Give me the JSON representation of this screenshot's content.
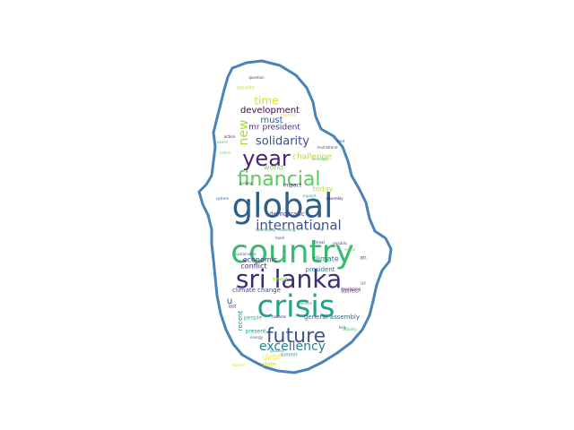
{
  "word_cloud": {
    "outline_color": "#4a83b8",
    "background_color": "#ffffff",
    "words": [
      {
        "text": "country",
        "color": "#3cba71"
      },
      {
        "text": "global",
        "color": "#2e5f8a"
      },
      {
        "text": "crisis",
        "color": "#20a386"
      },
      {
        "text": "sri lanka",
        "color": "#3b2d75"
      },
      {
        "text": "year",
        "color": "#482475"
      },
      {
        "text": "financial",
        "color": "#5ec962"
      },
      {
        "text": "future",
        "color": "#39568c"
      },
      {
        "text": "international",
        "color": "#3a548c"
      },
      {
        "text": "solidarity",
        "color": "#3d4e8a"
      },
      {
        "text": "excellency",
        "color": "#26828e"
      },
      {
        "text": "development",
        "color": "#440154"
      },
      {
        "text": "new",
        "color": "#a0da39"
      },
      {
        "text": "time",
        "color": "#d8e219"
      },
      {
        "text": "must",
        "color": "#33638d"
      },
      {
        "text": "mr president",
        "color": "#472d7b"
      },
      {
        "text": "challenge",
        "color": "#b5de2b"
      },
      {
        "text": "world",
        "color": "#7ad151"
      },
      {
        "text": "today",
        "color": "#bddf26"
      },
      {
        "text": "impact",
        "color": "#453781"
      },
      {
        "text": "democratic",
        "color": "#404688"
      },
      {
        "text": "economic",
        "color": "#472a7a"
      },
      {
        "text": "climate",
        "color": "#2a788e"
      },
      {
        "text": "conflict",
        "color": "#482173"
      },
      {
        "text": "president",
        "color": "#2c728e"
      },
      {
        "text": "need",
        "color": "#95d840"
      },
      {
        "text": "climate change",
        "color": "#3e4a89"
      },
      {
        "text": "general assembly",
        "color": "#31688e"
      },
      {
        "text": "u",
        "color": "#3b528b"
      },
      {
        "text": "people",
        "color": "#35b779"
      },
      {
        "text": "recent",
        "color": "#21918c"
      },
      {
        "text": "present",
        "color": "#1f9e89"
      },
      {
        "text": "debt",
        "color": "#fde725"
      },
      {
        "text": "last",
        "color": "#482878"
      },
      {
        "text": "state",
        "color": "#cae11f"
      },
      {
        "text": "address",
        "color": "#46327e"
      },
      {
        "text": "summit",
        "color": "#228c8d"
      },
      {
        "text": "security",
        "color": "#addc30"
      },
      {
        "text": "multilateral",
        "color": "#365c8d"
      },
      {
        "text": "republic",
        "color": "#414487"
      },
      {
        "text": "community",
        "color": "#287d8e"
      },
      {
        "text": "including",
        "color": "#1fa187"
      },
      {
        "text": "sustainable",
        "color": "#2b758e"
      },
      {
        "text": "economy",
        "color": "#4ac16d"
      },
      {
        "text": "assembly",
        "color": "#471063"
      },
      {
        "text": "spilling",
        "color": "#3f4788"
      },
      {
        "text": "system",
        "color": "#375b8d"
      },
      {
        "text": "developing",
        "color": "#46085c"
      },
      {
        "text": "question",
        "color": "#443983"
      },
      {
        "text": "towards",
        "color": "#481f70"
      },
      {
        "text": "energy",
        "color": "#2d718e"
      },
      {
        "text": "session",
        "color": "#29af7f"
      },
      {
        "text": "lag",
        "color": "#3c4f8a"
      },
      {
        "text": "food",
        "color": "#34618d"
      },
      {
        "text": "threat",
        "color": "#433e85"
      },
      {
        "text": "nation",
        "color": "#8bd646"
      },
      {
        "text": "action",
        "color": "#48186a"
      },
      {
        "text": "us",
        "color": "#38588c"
      },
      {
        "text": "an",
        "color": "#355f8d"
      },
      {
        "text": "hand",
        "color": "#3f4889"
      },
      {
        "text": "support",
        "color": "#25ac82"
      },
      {
        "text": "peace",
        "color": "#52c569"
      },
      {
        "text": "balance",
        "color": "#dde318"
      },
      {
        "text": "help",
        "color": "#2f6c8e"
      },
      {
        "text": "region",
        "color": "#6ccd5a"
      },
      {
        "text": "women",
        "color": "#e5e419"
      },
      {
        "text": "process",
        "color": "#23898e"
      },
      {
        "text": "stability",
        "color": "#41be71"
      }
    ]
  }
}
